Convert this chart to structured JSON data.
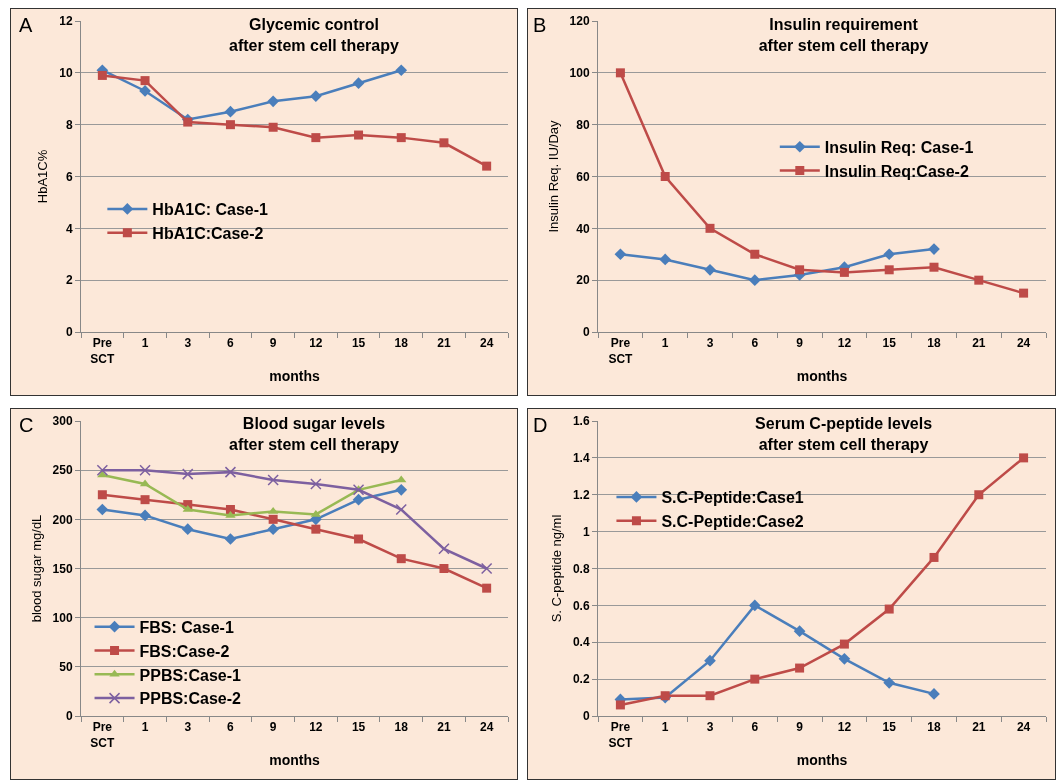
{
  "chart_data": [
    {
      "type": "line",
      "title": "Glycemic control after stem cell therapy",
      "xlabel": "months",
      "ylabel": "HbA1C%",
      "annotations": [
        "A"
      ],
      "categories": [
        "Pre SCT",
        "1",
        "3",
        "6",
        "9",
        "12",
        "15",
        "18",
        "21",
        "24"
      ],
      "series": [
        {
          "name": "HbA1C: Case-1",
          "color": "#4a7ebb",
          "marker": "diamond",
          "values": [
            10.1,
            9.3,
            8.2,
            8.5,
            8.9,
            9.1,
            9.6,
            10.1,
            null,
            null
          ]
        },
        {
          "name": "HbA1C:Case-2",
          "color": "#be4b48",
          "marker": "square",
          "values": [
            9.9,
            9.7,
            8.1,
            8.0,
            7.9,
            7.5,
            7.6,
            7.5,
            7.3,
            6.4
          ]
        }
      ],
      "ylim": [
        0,
        12
      ],
      "yticks": [
        0,
        2,
        4,
        6,
        8,
        10,
        12
      ],
      "grid": "y",
      "legend": "left"
    },
    {
      "type": "line",
      "title": "Insulin requirement after stem cell therapy",
      "xlabel": "months",
      "ylabel": "Insulin Req. IU/Day",
      "annotations": [
        "B"
      ],
      "categories": [
        "Pre SCT",
        "1",
        "3",
        "6",
        "9",
        "12",
        "15",
        "18",
        "21",
        "24"
      ],
      "series": [
        {
          "name": "Insulin Req: Case-1",
          "color": "#4a7ebb",
          "marker": "diamond",
          "values": [
            30,
            28,
            24,
            20,
            22,
            25,
            30,
            32,
            null,
            null
          ]
        },
        {
          "name": "Insulin Req:Case-2",
          "color": "#be4b48",
          "marker": "square",
          "values": [
            100,
            60,
            40,
            30,
            24,
            23,
            24,
            25,
            20,
            15
          ]
        }
      ],
      "ylim": [
        0,
        120
      ],
      "yticks": [
        0,
        20,
        40,
        60,
        80,
        100,
        120
      ],
      "grid": "y",
      "legend": "right"
    },
    {
      "type": "line",
      "title": "Blood sugar levels after stem cell therapy",
      "xlabel": "months",
      "ylabel": "blood sugar mg/dL",
      "annotations": [
        "C"
      ],
      "categories": [
        "Pre SCT",
        "1",
        "3",
        "6",
        "9",
        "12",
        "15",
        "18",
        "21",
        "24"
      ],
      "series": [
        {
          "name": "FBS: Case-1",
          "color": "#4a7ebb",
          "marker": "diamond",
          "values": [
            210,
            204,
            190,
            180,
            190,
            200,
            220,
            230,
            null,
            null
          ]
        },
        {
          "name": "FBS:Case-2",
          "color": "#be4b48",
          "marker": "square",
          "values": [
            225,
            220,
            215,
            210,
            200,
            190,
            180,
            160,
            150,
            130
          ]
        },
        {
          "name": "PPBS:Case-1",
          "color": "#98b954",
          "marker": "triangle",
          "values": [
            245,
            236,
            210,
            204,
            208,
            205,
            230,
            240,
            null,
            null
          ]
        },
        {
          "name": "PPBS:Case-2",
          "color": "#7d60a0",
          "marker": "cross",
          "values": [
            250,
            250,
            246,
            248,
            240,
            236,
            230,
            210,
            170,
            150
          ]
        }
      ],
      "ylim": [
        0,
        300
      ],
      "yticks": [
        0,
        50,
        100,
        150,
        200,
        250,
        300
      ],
      "grid": "y",
      "legend": "bottom"
    },
    {
      "type": "line",
      "title": "Serum C-peptide levels after stem cell therapy",
      "xlabel": "months",
      "ylabel": "S. C-peptide ng/ml",
      "annotations": [
        "D"
      ],
      "categories": [
        "Pre SCT",
        "1",
        "3",
        "6",
        "9",
        "12",
        "15",
        "18",
        "21",
        "24"
      ],
      "series": [
        {
          "name": "S.C-Peptide:Case1",
          "color": "#4a7ebb",
          "marker": "diamond",
          "values": [
            0.09,
            0.1,
            0.3,
            0.6,
            0.46,
            0.31,
            0.18,
            0.12,
            null,
            null
          ]
        },
        {
          "name": "S.C-Peptide:Case2",
          "color": "#be4b48",
          "marker": "square",
          "values": [
            0.06,
            0.11,
            0.11,
            0.2,
            0.26,
            0.39,
            0.58,
            0.86,
            1.2,
            1.4
          ]
        }
      ],
      "ylim": [
        0,
        1.6
      ],
      "yticks": [
        0,
        0.2,
        0.4,
        0.6,
        0.8,
        1,
        1.2,
        1.4,
        1.6
      ],
      "grid": "y",
      "legend": "top left"
    }
  ]
}
